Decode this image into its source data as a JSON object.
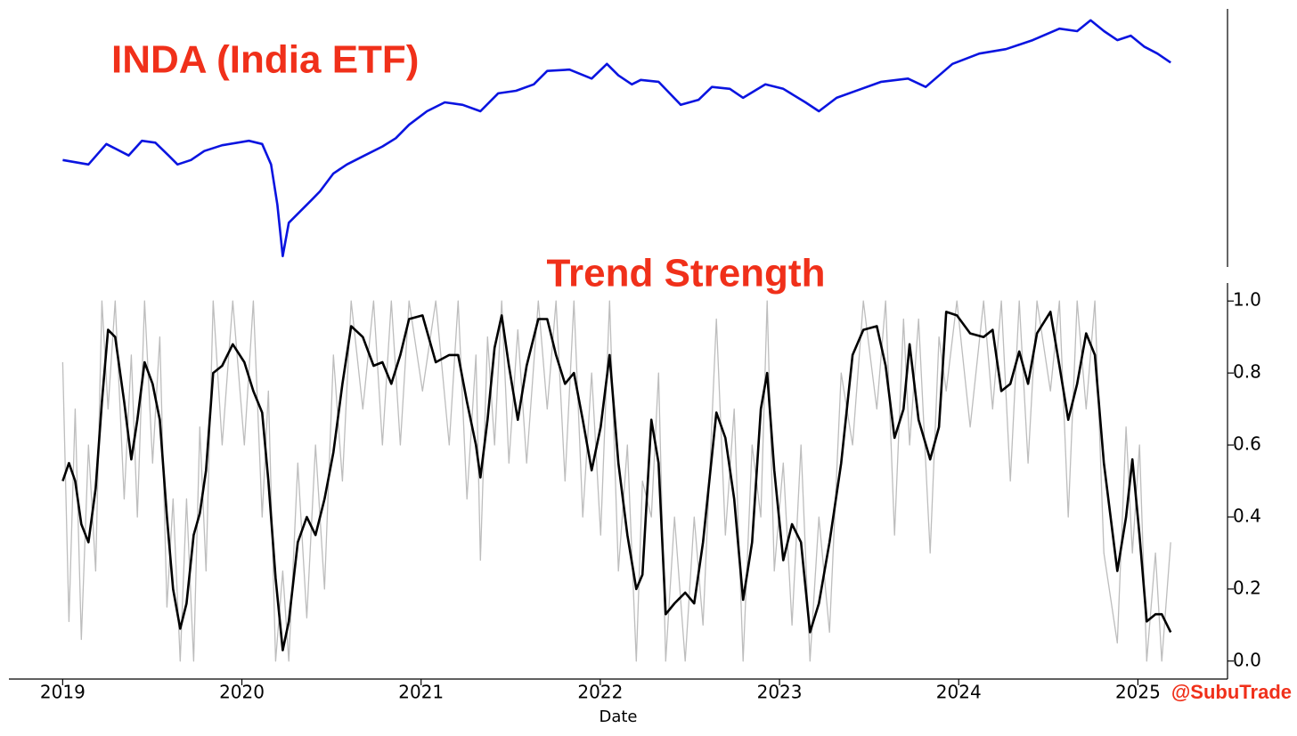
{
  "chart_data": [
    {
      "type": "line",
      "title": "INDA (India ETF)",
      "xlim": [
        2018.7,
        2025.5
      ],
      "ylim": [
        20,
        60
      ],
      "x": [
        2019.0,
        2019.144,
        2019.244,
        2019.368,
        2019.442,
        2019.517,
        2019.591,
        2019.641,
        2019.716,
        2019.79,
        2019.89,
        2020.039,
        2020.113,
        2020.163,
        2020.198,
        2020.228,
        2020.262,
        2020.312,
        2020.387,
        2020.436,
        2020.511,
        2020.586,
        2020.685,
        2020.784,
        2020.859,
        2020.933,
        2021.033,
        2021.132,
        2021.232,
        2021.331,
        2021.43,
        2021.53,
        2021.629,
        2021.704,
        2021.828,
        2021.952,
        2022.037,
        2022.101,
        2022.176,
        2022.226,
        2022.325,
        2022.449,
        2022.549,
        2022.623,
        2022.723,
        2022.797,
        2022.921,
        2023.021,
        2023.145,
        2023.22,
        2023.319,
        2023.418,
        2023.568,
        2023.717,
        2023.816,
        2023.965,
        2024.115,
        2024.264,
        2024.413,
        2024.562,
        2024.661,
        2024.736,
        2024.811,
        2024.885,
        2024.96,
        2025.034,
        2025.109,
        2025.183
      ],
      "series": [
        {
          "color": "#0a14e0",
          "values": [
            36.7,
            36.0,
            39.2,
            37.4,
            39.7,
            39.4,
            37.4,
            36.0,
            36.7,
            38.1,
            39.0,
            39.7,
            39.2,
            36.0,
            29.7,
            21.7,
            26.9,
            28.3,
            30.4,
            31.8,
            34.6,
            36.0,
            37.4,
            38.8,
            40.1,
            42.2,
            44.3,
            45.7,
            45.3,
            44.3,
            47.1,
            47.5,
            48.5,
            50.6,
            50.8,
            49.4,
            51.7,
            49.9,
            48.5,
            49.2,
            48.9,
            45.3,
            46.1,
            48.1,
            47.8,
            46.4,
            48.5,
            47.8,
            45.7,
            44.3,
            46.4,
            47.4,
            48.9,
            49.4,
            48.1,
            51.7,
            53.3,
            54.0,
            55.4,
            57.2,
            56.8,
            58.5,
            56.8,
            55.4,
            56.1,
            54.4,
            53.3,
            51.9
          ]
        }
      ]
    },
    {
      "type": "line",
      "title": "Trend Strength",
      "xlabel": "Date",
      "annotation": "@SubuTrade",
      "xlim": [
        2018.7,
        2025.5
      ],
      "ylim": [
        -0.05,
        1.05
      ],
      "xticks": [
        2019,
        2020,
        2021,
        2022,
        2023,
        2024,
        2025
      ],
      "yticks": [
        {
          "value": 0,
          "label": "0.0"
        },
        0.2,
        0.4,
        0.6,
        0.8,
        {
          "value": 1,
          "label": "1.0"
        }
      ],
      "x": [
        2019.0,
        2019.035,
        2019.07,
        2019.104,
        2019.144,
        2019.184,
        2019.219,
        2019.253,
        2019.293,
        2019.343,
        2019.383,
        2019.417,
        2019.457,
        2019.502,
        2019.542,
        2019.582,
        2019.616,
        2019.656,
        2019.691,
        2019.731,
        2019.765,
        2019.8,
        2019.84,
        2019.89,
        2019.949,
        2020.014,
        2020.064,
        2020.113,
        2020.148,
        2020.188,
        2020.228,
        2020.262,
        2020.312,
        2020.362,
        2020.411,
        2020.461,
        2020.511,
        2020.561,
        2020.61,
        2020.675,
        2020.735,
        2020.784,
        2020.834,
        2020.884,
        2020.933,
        2021.008,
        2021.082,
        2021.157,
        2021.207,
        2021.256,
        2021.306,
        2021.331,
        2021.371,
        2021.41,
        2021.45,
        2021.49,
        2021.54,
        2021.589,
        2021.654,
        2021.704,
        2021.753,
        2021.803,
        2021.853,
        2021.902,
        2021.952,
        2022.002,
        2022.052,
        2022.101,
        2022.151,
        2022.201,
        2022.235,
        2022.285,
        2022.325,
        2022.365,
        2022.414,
        2022.474,
        2022.524,
        2022.573,
        2022.648,
        2022.698,
        2022.747,
        2022.797,
        2022.847,
        2022.896,
        2022.931,
        2022.971,
        2023.021,
        2023.07,
        2023.12,
        2023.17,
        2023.22,
        2023.279,
        2023.344,
        2023.408,
        2023.468,
        2023.543,
        2023.592,
        2023.642,
        2023.692,
        2023.726,
        2023.776,
        2023.841,
        2023.89,
        2023.93,
        2023.99,
        2024.064,
        2024.139,
        2024.189,
        2024.238,
        2024.288,
        2024.338,
        2024.387,
        2024.437,
        2024.512,
        2024.562,
        2024.611,
        2024.661,
        2024.711,
        2024.76,
        2024.81,
        2024.885,
        2024.934,
        2024.969,
        2025.009,
        2025.049,
        2025.098,
        2025.133,
        2025.183
      ],
      "series": [
        {
          "color": "#bdbdbd",
          "values": [
            0.83,
            0.11,
            0.7,
            0.06,
            0.6,
            0.25,
            1.0,
            0.7,
            1.0,
            0.45,
            0.85,
            0.4,
            1.0,
            0.55,
            0.9,
            0.15,
            0.45,
            0,
            0.45,
            0,
            0.65,
            0.25,
            1.0,
            0.6,
            1.0,
            0.6,
            1.0,
            0.4,
            0.75,
            0,
            0.25,
            0,
            0.55,
            0.12,
            0.6,
            0.2,
            0.85,
            0.5,
            1.0,
            0.7,
            1.0,
            0.6,
            1.0,
            0.6,
            1.0,
            0.75,
            1.0,
            0.6,
            1.0,
            0.45,
            0.85,
            0.28,
            0.9,
            0.6,
            1.0,
            0.55,
            0.92,
            0.55,
            1.0,
            0.7,
            1.0,
            0.5,
            1.0,
            0.4,
            0.8,
            0.35,
            1.0,
            0.25,
            0.6,
            0,
            0.5,
            0.4,
            0.8,
            0,
            0.4,
            0,
            0.4,
            0.1,
            0.95,
            0.35,
            0.7,
            0,
            0.6,
            0.4,
            1.0,
            0.25,
            0.55,
            0.1,
            0.6,
            0,
            0.4,
            0.08,
            0.8,
            0.6,
            1.0,
            0.7,
            1.0,
            0.35,
            0.95,
            0.6,
            0.95,
            0.3,
            0.9,
            0.75,
            1.0,
            0.65,
            1.0,
            0.7,
            1.0,
            0.5,
            1.0,
            0.55,
            1.0,
            0.75,
            1.0,
            0.4,
            1.0,
            0.7,
            1.0,
            0.3,
            0.05,
            0.65,
            0.3,
            0.6,
            0,
            0.3,
            0,
            0.33
          ]
        },
        {
          "color": "#000000",
          "values": [
            0.5,
            0.55,
            0.5,
            0.38,
            0.33,
            0.48,
            0.72,
            0.92,
            0.9,
            0.72,
            0.56,
            0.67,
            0.83,
            0.77,
            0.67,
            0.4,
            0.2,
            0.09,
            0.16,
            0.35,
            0.41,
            0.53,
            0.8,
            0.82,
            0.88,
            0.83,
            0.75,
            0.69,
            0.5,
            0.23,
            0.03,
            0.11,
            0.33,
            0.4,
            0.35,
            0.45,
            0.58,
            0.77,
            0.93,
            0.9,
            0.82,
            0.83,
            0.77,
            0.85,
            0.95,
            0.96,
            0.83,
            0.85,
            0.85,
            0.72,
            0.6,
            0.51,
            0.67,
            0.87,
            0.96,
            0.82,
            0.67,
            0.82,
            0.95,
            0.95,
            0.85,
            0.77,
            0.8,
            0.67,
            0.53,
            0.65,
            0.85,
            0.55,
            0.35,
            0.2,
            0.24,
            0.67,
            0.55,
            0.13,
            0.16,
            0.19,
            0.16,
            0.33,
            0.69,
            0.62,
            0.45,
            0.17,
            0.33,
            0.7,
            0.8,
            0.53,
            0.28,
            0.38,
            0.33,
            0.08,
            0.16,
            0.33,
            0.55,
            0.85,
            0.92,
            0.93,
            0.82,
            0.62,
            0.7,
            0.88,
            0.67,
            0.56,
            0.65,
            0.97,
            0.96,
            0.91,
            0.9,
            0.92,
            0.75,
            0.77,
            0.86,
            0.77,
            0.91,
            0.97,
            0.82,
            0.67,
            0.77,
            0.91,
            0.85,
            0.55,
            0.25,
            0.4,
            0.56,
            0.35,
            0.11,
            0.13,
            0.13,
            0.08
          ]
        }
      ]
    }
  ]
}
